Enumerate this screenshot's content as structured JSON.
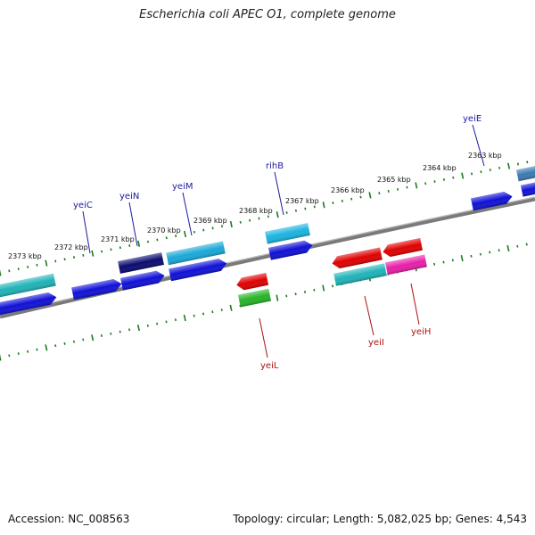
{
  "title": "Escherichia coli APEC O1, complete genome",
  "footer": {
    "accession": "Accession: NC_008563",
    "summary": "Topology: circular; Length: 5,082,025 bp; Genes: 4,543"
  },
  "colors": {
    "backbone": "#808080",
    "tick": "#1e7a1e",
    "forward_label": "#1a1aa0",
    "reverse_label": "#b01010"
  },
  "kbp_labels": [
    "2373 kbp",
    "2372 kbp",
    "2371 kbp",
    "2370 kbp",
    "2369 kbp",
    "2368 kbp",
    "2367 kbp",
    "2366 kbp",
    "2365 kbp",
    "2364 kbp",
    "2363 kbp"
  ],
  "forward_gene_labels": [
    "yeiC",
    "yeiN",
    "yeiM",
    "rihB",
    "yeiE"
  ],
  "reverse_gene_labels": [
    "yeiL",
    "yeiI",
    "yeiH"
  ]
}
